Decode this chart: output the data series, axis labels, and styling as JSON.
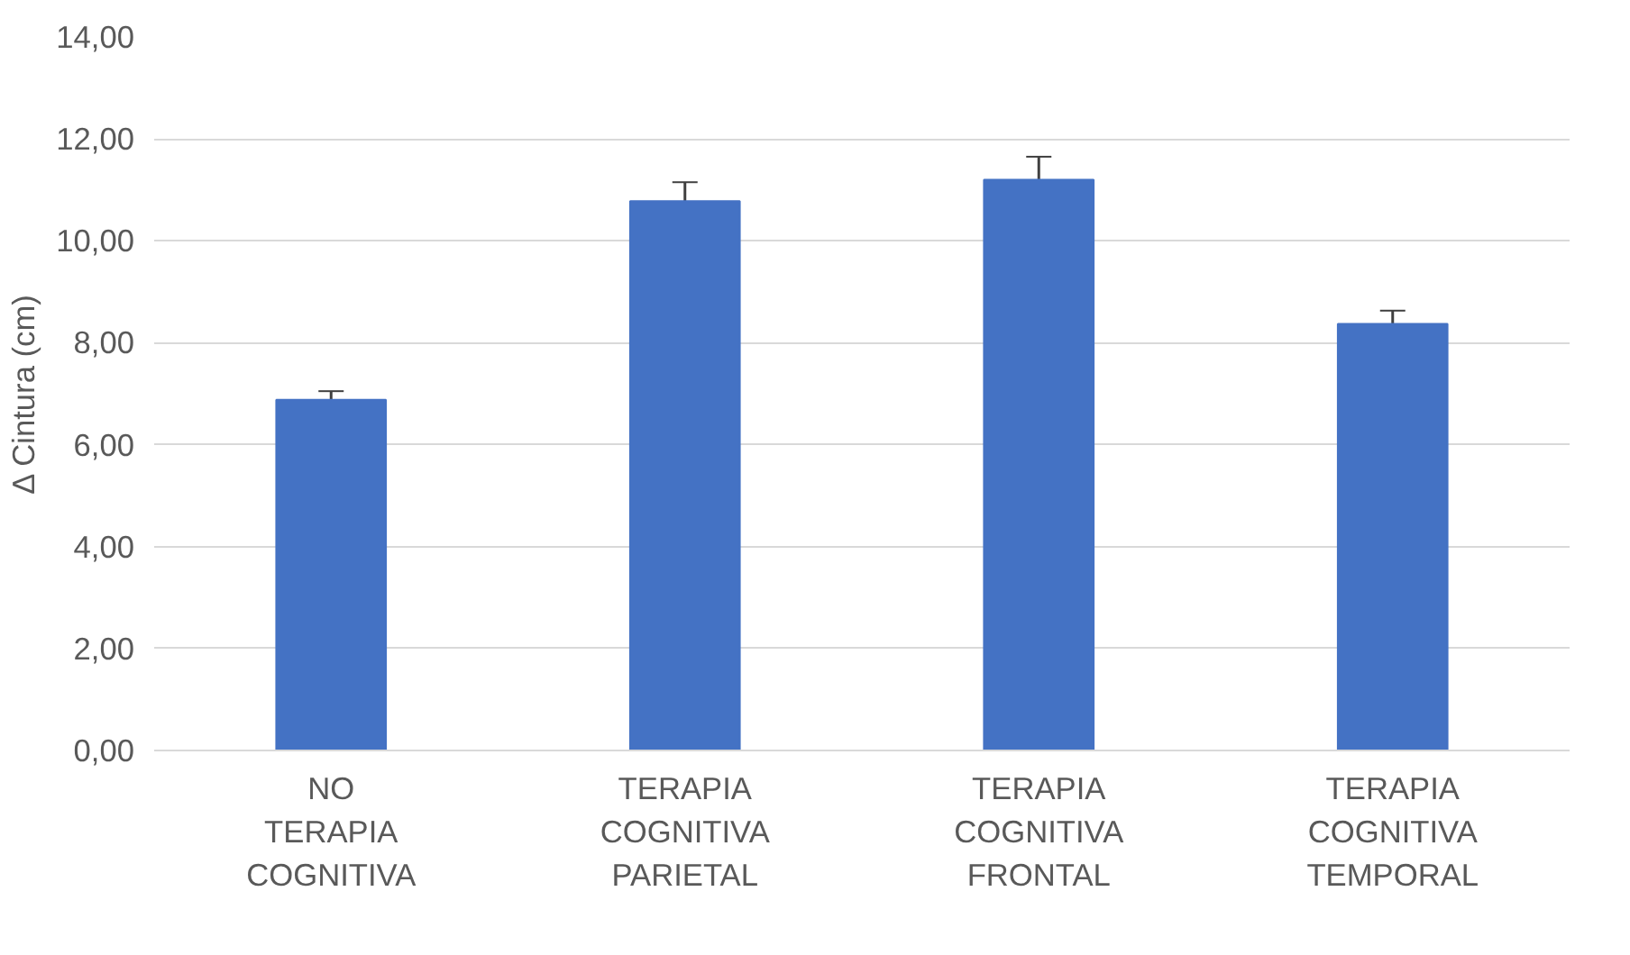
{
  "chart_data": {
    "type": "bar",
    "ylabel": "Δ Cintura (cm)",
    "categories": [
      "NO TERAPIA COGNITIVA",
      "TERAPIA COGNITIVA PARIETAL",
      "TERAPIA COGNITIVA FRONTAL",
      "TERAPIA COGNITIVA TEMPORAL"
    ],
    "values": [
      6.88,
      10.78,
      11.2,
      8.37
    ],
    "errors": [
      0.17,
      0.37,
      0.45,
      0.26
    ],
    "color": "#4472c4",
    "ylim": [
      0,
      14
    ],
    "yticks": [
      {
        "value": 0,
        "label": "0,00"
      },
      {
        "value": 2,
        "label": "2,00"
      },
      {
        "value": 4,
        "label": "4,00"
      },
      {
        "value": 6,
        "label": "6,00"
      },
      {
        "value": 8,
        "label": "8,00"
      },
      {
        "value": 10,
        "label": "10,00"
      },
      {
        "value": 12,
        "label": "12,00"
      },
      {
        "value": 14,
        "label": "14,00"
      }
    ],
    "grid": "y"
  }
}
